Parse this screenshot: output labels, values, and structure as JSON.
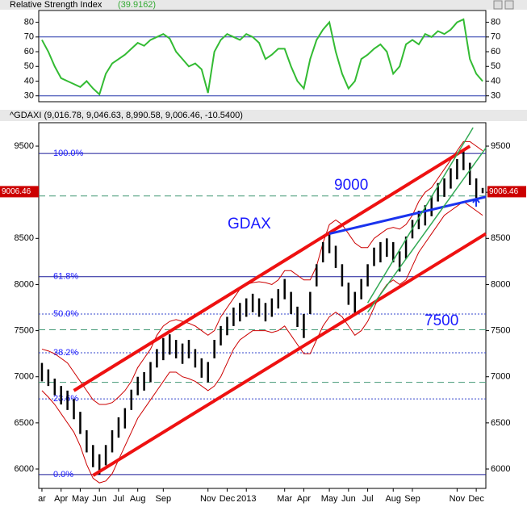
{
  "chart_data": [
    {
      "type": "line",
      "title": "Relative Strength Index",
      "subtitle": "(39.9162)",
      "color": "#33bb33",
      "ylim": [
        26,
        88
      ],
      "yticks": [
        30,
        40,
        50,
        60,
        70,
        80
      ],
      "levels": [
        70,
        30
      ],
      "values": [
        68,
        60,
        50,
        42,
        40,
        38,
        36,
        40,
        35,
        31,
        45,
        52,
        55,
        58,
        62,
        66,
        64,
        68,
        70,
        72,
        69,
        60,
        55,
        50,
        52,
        48,
        32,
        60,
        68,
        72,
        70,
        68,
        72,
        70,
        66,
        55,
        58,
        62,
        62,
        50,
        40,
        35,
        55,
        68,
        75,
        80,
        60,
        45,
        35,
        40,
        55,
        58,
        62,
        65,
        60,
        45,
        50,
        65,
        68,
        65,
        72,
        70,
        74,
        72,
        75,
        80,
        82,
        55,
        45,
        39.9162
      ]
    },
    {
      "type": "hilo",
      "title": "^GDAXI (9,016.78, 9,046.63, 8,990.58, 9,006.46, -10.5400)",
      "last": 9006.46,
      "ylim": [
        5790,
        9754
      ],
      "yticks": [
        6000,
        6500,
        7000,
        7500,
        8000,
        8500,
        9000,
        9500
      ],
      "categories": [
        "ar",
        null,
        null,
        "Apr",
        null,
        null,
        "May",
        null,
        null,
        "Jun",
        null,
        null,
        "Jul",
        null,
        null,
        "Aug",
        null,
        null,
        null,
        "Sep",
        null,
        null,
        null,
        null,
        null,
        null,
        "Nov",
        null,
        null,
        "Dec",
        null,
        null,
        "2013",
        null,
        null,
        null,
        null,
        null,
        "Mar",
        null,
        null,
        "Apr",
        null,
        null,
        null,
        "May",
        null,
        null,
        "Jun",
        null,
        null,
        "Jul",
        null,
        null,
        null,
        "Aug",
        null,
        null,
        "Sep",
        null,
        null,
        null,
        null,
        null,
        null,
        "Nov",
        null,
        null,
        "Dec",
        null
      ],
      "high": [
        7150,
        7080,
        6980,
        6900,
        6850,
        6760,
        6620,
        6420,
        6260,
        6160,
        6260,
        6420,
        6560,
        6660,
        6860,
        7000,
        7050,
        7160,
        7300,
        7420,
        7460,
        7400,
        7360,
        7400,
        7300,
        7200,
        7160,
        7400,
        7550,
        7650,
        7750,
        7800,
        7850,
        7900,
        7850,
        7800,
        7850,
        7950,
        8060,
        7920,
        7760,
        7680,
        7920,
        8220,
        8460,
        8560,
        8420,
        8220,
        8020,
        7920,
        8060,
        8220,
        8400,
        8460,
        8500,
        8460,
        8360,
        8520,
        8700,
        8800,
        8860,
        8960,
        9100,
        9150,
        9260,
        9360,
        9460,
        9320,
        9150,
        9047
      ],
      "low": [
        6950,
        6900,
        6800,
        6700,
        6640,
        6540,
        6380,
        6180,
        6020,
        5940,
        6040,
        6180,
        6340,
        6440,
        6640,
        6800,
        6850,
        6940,
        7100,
        7180,
        7240,
        7200,
        7140,
        7200,
        7100,
        6990,
        6940,
        7200,
        7340,
        7450,
        7550,
        7600,
        7650,
        7700,
        7650,
        7600,
        7650,
        7740,
        7840,
        7680,
        7540,
        7420,
        7680,
        7980,
        8240,
        8340,
        8180,
        7980,
        7780,
        7680,
        7840,
        7980,
        8200,
        8240,
        8300,
        8240,
        8140,
        8280,
        8500,
        8600,
        8640,
        8740,
        8900,
        8950,
        9040,
        9140,
        9240,
        9080,
        8940,
        8990
      ],
      "bar_color": "#000000",
      "bb_upper": [
        7300,
        7280,
        7250,
        7200,
        7150,
        7050,
        6950,
        6850,
        6750,
        6700,
        6700,
        6720,
        6780,
        6850,
        6950,
        7100,
        7200,
        7300,
        7450,
        7550,
        7600,
        7620,
        7600,
        7580,
        7550,
        7500,
        7450,
        7500,
        7650,
        7750,
        7850,
        7950,
        8000,
        8020,
        8030,
        8020,
        8000,
        8050,
        8150,
        8150,
        8100,
        8050,
        8050,
        8200,
        8450,
        8650,
        8700,
        8650,
        8550,
        8450,
        8400,
        8400,
        8500,
        8550,
        8600,
        8620,
        8600,
        8650,
        8750,
        8900,
        9000,
        9050,
        9150,
        9250,
        9350,
        9450,
        9550,
        9550,
        9500,
        9450
      ],
      "bb_lower": [
        6850,
        6780,
        6700,
        6600,
        6500,
        6400,
        6250,
        6050,
        5900,
        5850,
        5870,
        5950,
        6100,
        6250,
        6400,
        6550,
        6650,
        6750,
        6850,
        6950,
        7050,
        7050,
        7000,
        6980,
        6950,
        6900,
        6850,
        6900,
        7000,
        7150,
        7300,
        7400,
        7450,
        7500,
        7500,
        7500,
        7480,
        7500,
        7550,
        7450,
        7350,
        7250,
        7250,
        7400,
        7550,
        7650,
        7700,
        7650,
        7550,
        7450,
        7500,
        7600,
        7750,
        7900,
        8000,
        8050,
        8000,
        8050,
        8200,
        8350,
        8450,
        8550,
        8650,
        8750,
        8800,
        8850,
        8900,
        8850,
        8800,
        8750
      ],
      "bb_color": "#cc0000",
      "fib_levels": [
        {
          "label": "100.0%",
          "value": 9420,
          "style": "solid"
        },
        {
          "label": "61.8%",
          "value": 8085,
          "style": "solid"
        },
        {
          "label": "50.0%",
          "value": 7680,
          "style": "dotted"
        },
        {
          "label": "38.2%",
          "value": 7260,
          "style": "dotted"
        },
        {
          "label": "23.6%",
          "value": 6760,
          "style": "dotted"
        },
        {
          "label": "0.0%",
          "value": 5940,
          "style": "solid"
        }
      ],
      "dashed_levels": [
        8960,
        7510,
        6940
      ],
      "trendlines": [
        {
          "color": "#ee1111",
          "width": 4,
          "x": [
            5,
            67
          ],
          "y": [
            6850,
            9500
          ]
        },
        {
          "color": "#ee1111",
          "width": 4,
          "x": [
            8,
            69.5
          ],
          "y": [
            5930,
            8550
          ]
        },
        {
          "color": "#1a33ee",
          "width": 3,
          "x": [
            45,
            69.5
          ],
          "y": [
            8550,
            8950
          ]
        },
        {
          "color": "#33aa55",
          "width": 1.5,
          "x": [
            51,
            67.5
          ],
          "y": [
            7800,
            9700
          ]
        },
        {
          "color": "#33aa55",
          "width": 1.5,
          "x": [
            51,
            69.5
          ],
          "y": [
            7700,
            9480
          ]
        }
      ],
      "annotations": [
        "9000",
        "GDAX",
        "7500"
      ]
    }
  ]
}
